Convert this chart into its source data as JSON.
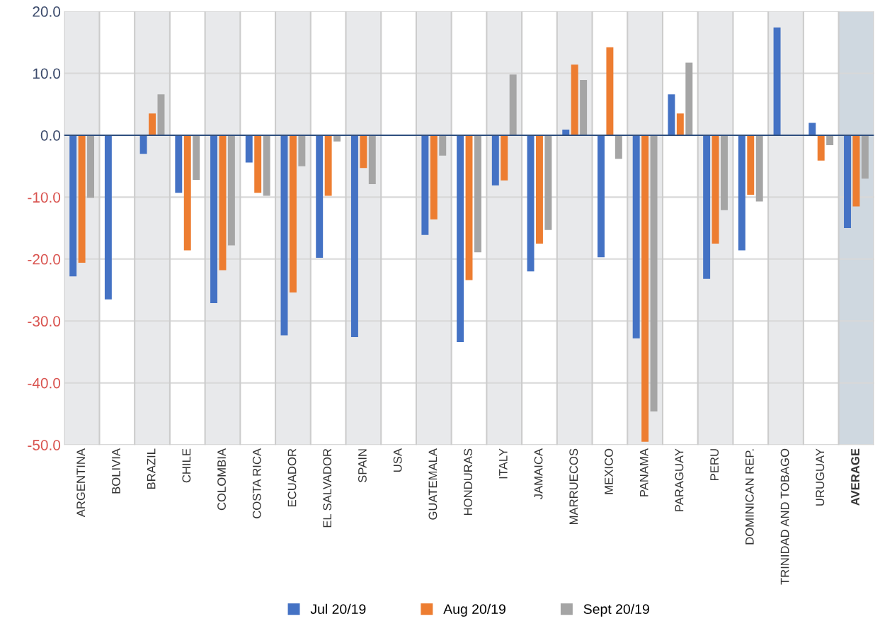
{
  "chart_data": {
    "type": "bar",
    "categories": [
      "ARGENTINA",
      "BOLIVIA",
      "BRAZIL",
      "CHILE",
      "COLOMBIA",
      "COSTA RICA",
      "ECUADOR",
      "EL SALVADOR",
      "SPAIN",
      "USA",
      "GUATEMALA",
      "HONDURAS",
      "ITALY",
      "JAMAICA",
      "MARRUECOS",
      "MEXICO",
      "PANAMA",
      "PARAGUAY",
      "PERU",
      "DOMINICAN REP.",
      "TRINIDAD AND TOBAGO",
      "URUGUAY",
      "AVERAGE"
    ],
    "series": [
      {
        "name": "Jul 20/19",
        "color": "#4472c4",
        "values": [
          -22.8,
          -26.5,
          -3.0,
          -9.3,
          -27.1,
          -4.4,
          -32.3,
          -19.8,
          -32.6,
          null,
          -16.1,
          -33.4,
          -8.1,
          -22.0,
          0.9,
          -19.7,
          -32.8,
          6.6,
          -23.2,
          -18.6,
          17.4,
          2.0,
          -15.0
        ]
      },
      {
        "name": "Aug 20/19",
        "color": "#ed7d31",
        "values": [
          -20.6,
          null,
          3.5,
          -18.6,
          -21.8,
          -9.3,
          -25.4,
          -9.8,
          -5.3,
          null,
          -13.6,
          -23.4,
          -7.3,
          -17.5,
          11.4,
          14.2,
          -49.5,
          3.5,
          -17.5,
          -9.6,
          null,
          -4.1,
          -11.5
        ]
      },
      {
        "name": "Sept 20/19",
        "color": "#a5a5a5",
        "values": [
          -10.1,
          null,
          6.6,
          -7.2,
          -17.8,
          -9.8,
          -5.0,
          -1.0,
          -7.9,
          null,
          -3.3,
          -18.9,
          9.8,
          -15.3,
          8.9,
          -3.8,
          -44.6,
          11.7,
          -12.1,
          -10.7,
          null,
          -1.6,
          -7.0
        ]
      }
    ],
    "ylim": [
      -50,
      20
    ],
    "yticks": [
      {
        "value": -50,
        "label": "-50.0"
      },
      {
        "value": -40,
        "label": "-40.0"
      },
      {
        "value": -30,
        "label": "-30.0"
      },
      {
        "value": -20,
        "label": "-20.0"
      },
      {
        "value": -10,
        "label": "-10.0"
      },
      {
        "value": 0,
        "label": "0.0"
      },
      {
        "value": 10,
        "label": "10.0"
      },
      {
        "value": 20,
        "label": "20.0"
      }
    ],
    "grid": true,
    "ref_lines": [
      {
        "axis": "y",
        "value": 0,
        "color": "#2f4f7f"
      }
    ],
    "legend": "bottom"
  }
}
